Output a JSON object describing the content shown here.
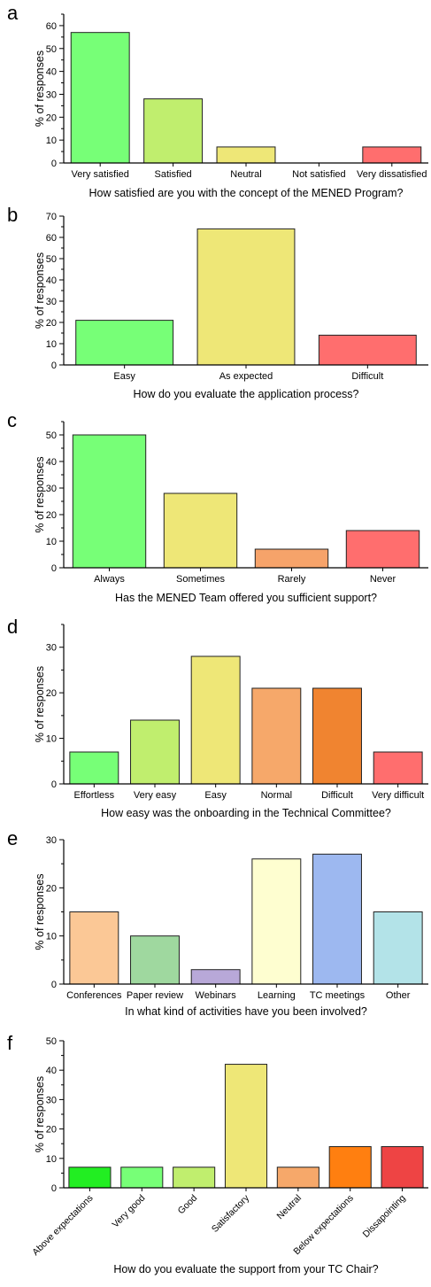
{
  "chart_data": [
    {
      "type": "bar",
      "panel_letter": "a",
      "ylabel": "% of responses",
      "xlabel": "How satisfied are you with the concept of the MENED Program?",
      "categories": [
        "Very satisfied",
        "Satisfied",
        "Neutral",
        "Not satisfied",
        "Very dissatisfied"
      ],
      "values": [
        57,
        28,
        7,
        0,
        7
      ],
      "colors": [
        "#77FF77",
        "#C0EE6E",
        "#EEE777",
        "#F6A36A",
        "#FF6E6E"
      ],
      "ylim": [
        0,
        65
      ],
      "yticks": [
        0,
        10,
        20,
        30,
        40,
        50,
        60
      ],
      "grid": false
    },
    {
      "type": "bar",
      "panel_letter": "b",
      "ylabel": "% of responses",
      "xlabel": "How do you evaluate the application process?",
      "categories": [
        "Easy",
        "As expected",
        "Difficult"
      ],
      "values": [
        21,
        64,
        14
      ],
      "colors": [
        "#77FF77",
        "#EEE777",
        "#FF6E6E"
      ],
      "ylim": [
        0,
        70
      ],
      "yticks": [
        0,
        10,
        20,
        30,
        40,
        50,
        60,
        70
      ],
      "grid": false
    },
    {
      "type": "bar",
      "panel_letter": "c",
      "ylabel": "% of responses",
      "xlabel": "Has the MENED Team offered you sufficient support?",
      "categories": [
        "Always",
        "Sometimes",
        "Rarely",
        "Never"
      ],
      "values": [
        50,
        28,
        7,
        14
      ],
      "colors": [
        "#77FF77",
        "#EEE777",
        "#F6A36A",
        "#FF6E6E"
      ],
      "ylim": [
        0,
        55
      ],
      "yticks": [
        0,
        10,
        20,
        30,
        40,
        50
      ],
      "grid": false
    },
    {
      "type": "bar",
      "panel_letter": "d",
      "ylabel": "% of responses",
      "xlabel": "How easy was the onboarding in the Technical Committee?",
      "categories": [
        "Effortless",
        "Very easy",
        "Easy",
        "Normal",
        "Difficult",
        "Very difficult"
      ],
      "values": [
        7,
        14,
        28,
        21,
        21,
        7
      ],
      "colors": [
        "#77FF77",
        "#C0EE6E",
        "#EEE777",
        "#F6A86A",
        "#F08430",
        "#FF6E6E"
      ],
      "ylim": [
        0,
        35
      ],
      "yticks": [
        0,
        10,
        20,
        30
      ],
      "grid": false
    },
    {
      "type": "bar",
      "panel_letter": "e",
      "ylabel": "% of responses",
      "xlabel": "In what kind of activities have you been involved?",
      "categories": [
        "Conferences",
        "Paper review",
        "Webinars",
        "Learning",
        "TC meetings",
        "Other"
      ],
      "values": [
        15,
        10,
        3,
        26,
        27,
        15
      ],
      "colors": [
        "#FBC896",
        "#9FD89F",
        "#B8A8D8",
        "#FEFED0",
        "#9DB8F0",
        "#B3E3E8"
      ],
      "ylim": [
        0,
        30
      ],
      "yticks": [
        0,
        10,
        20,
        30
      ],
      "grid": false
    },
    {
      "type": "bar",
      "panel_letter": "f",
      "ylabel": "% of responses",
      "xlabel": "How do you evaluate the support from your TC Chair?",
      "categories": [
        "Above expectations",
        "Very good",
        "Good",
        "Satisfactory",
        "Neutral",
        "Below expectations",
        "Dissapointing"
      ],
      "values": [
        7,
        7,
        7,
        42,
        7,
        14,
        14
      ],
      "colors": [
        "#22EE22",
        "#77FF77",
        "#C0EE6E",
        "#EEE777",
        "#F6A86A",
        "#FF7F10",
        "#EE4444"
      ],
      "ylim": [
        0,
        50
      ],
      "yticks": [
        0,
        10,
        20,
        30,
        40,
        50
      ],
      "tick_label_rotation": -45,
      "grid": false
    }
  ]
}
